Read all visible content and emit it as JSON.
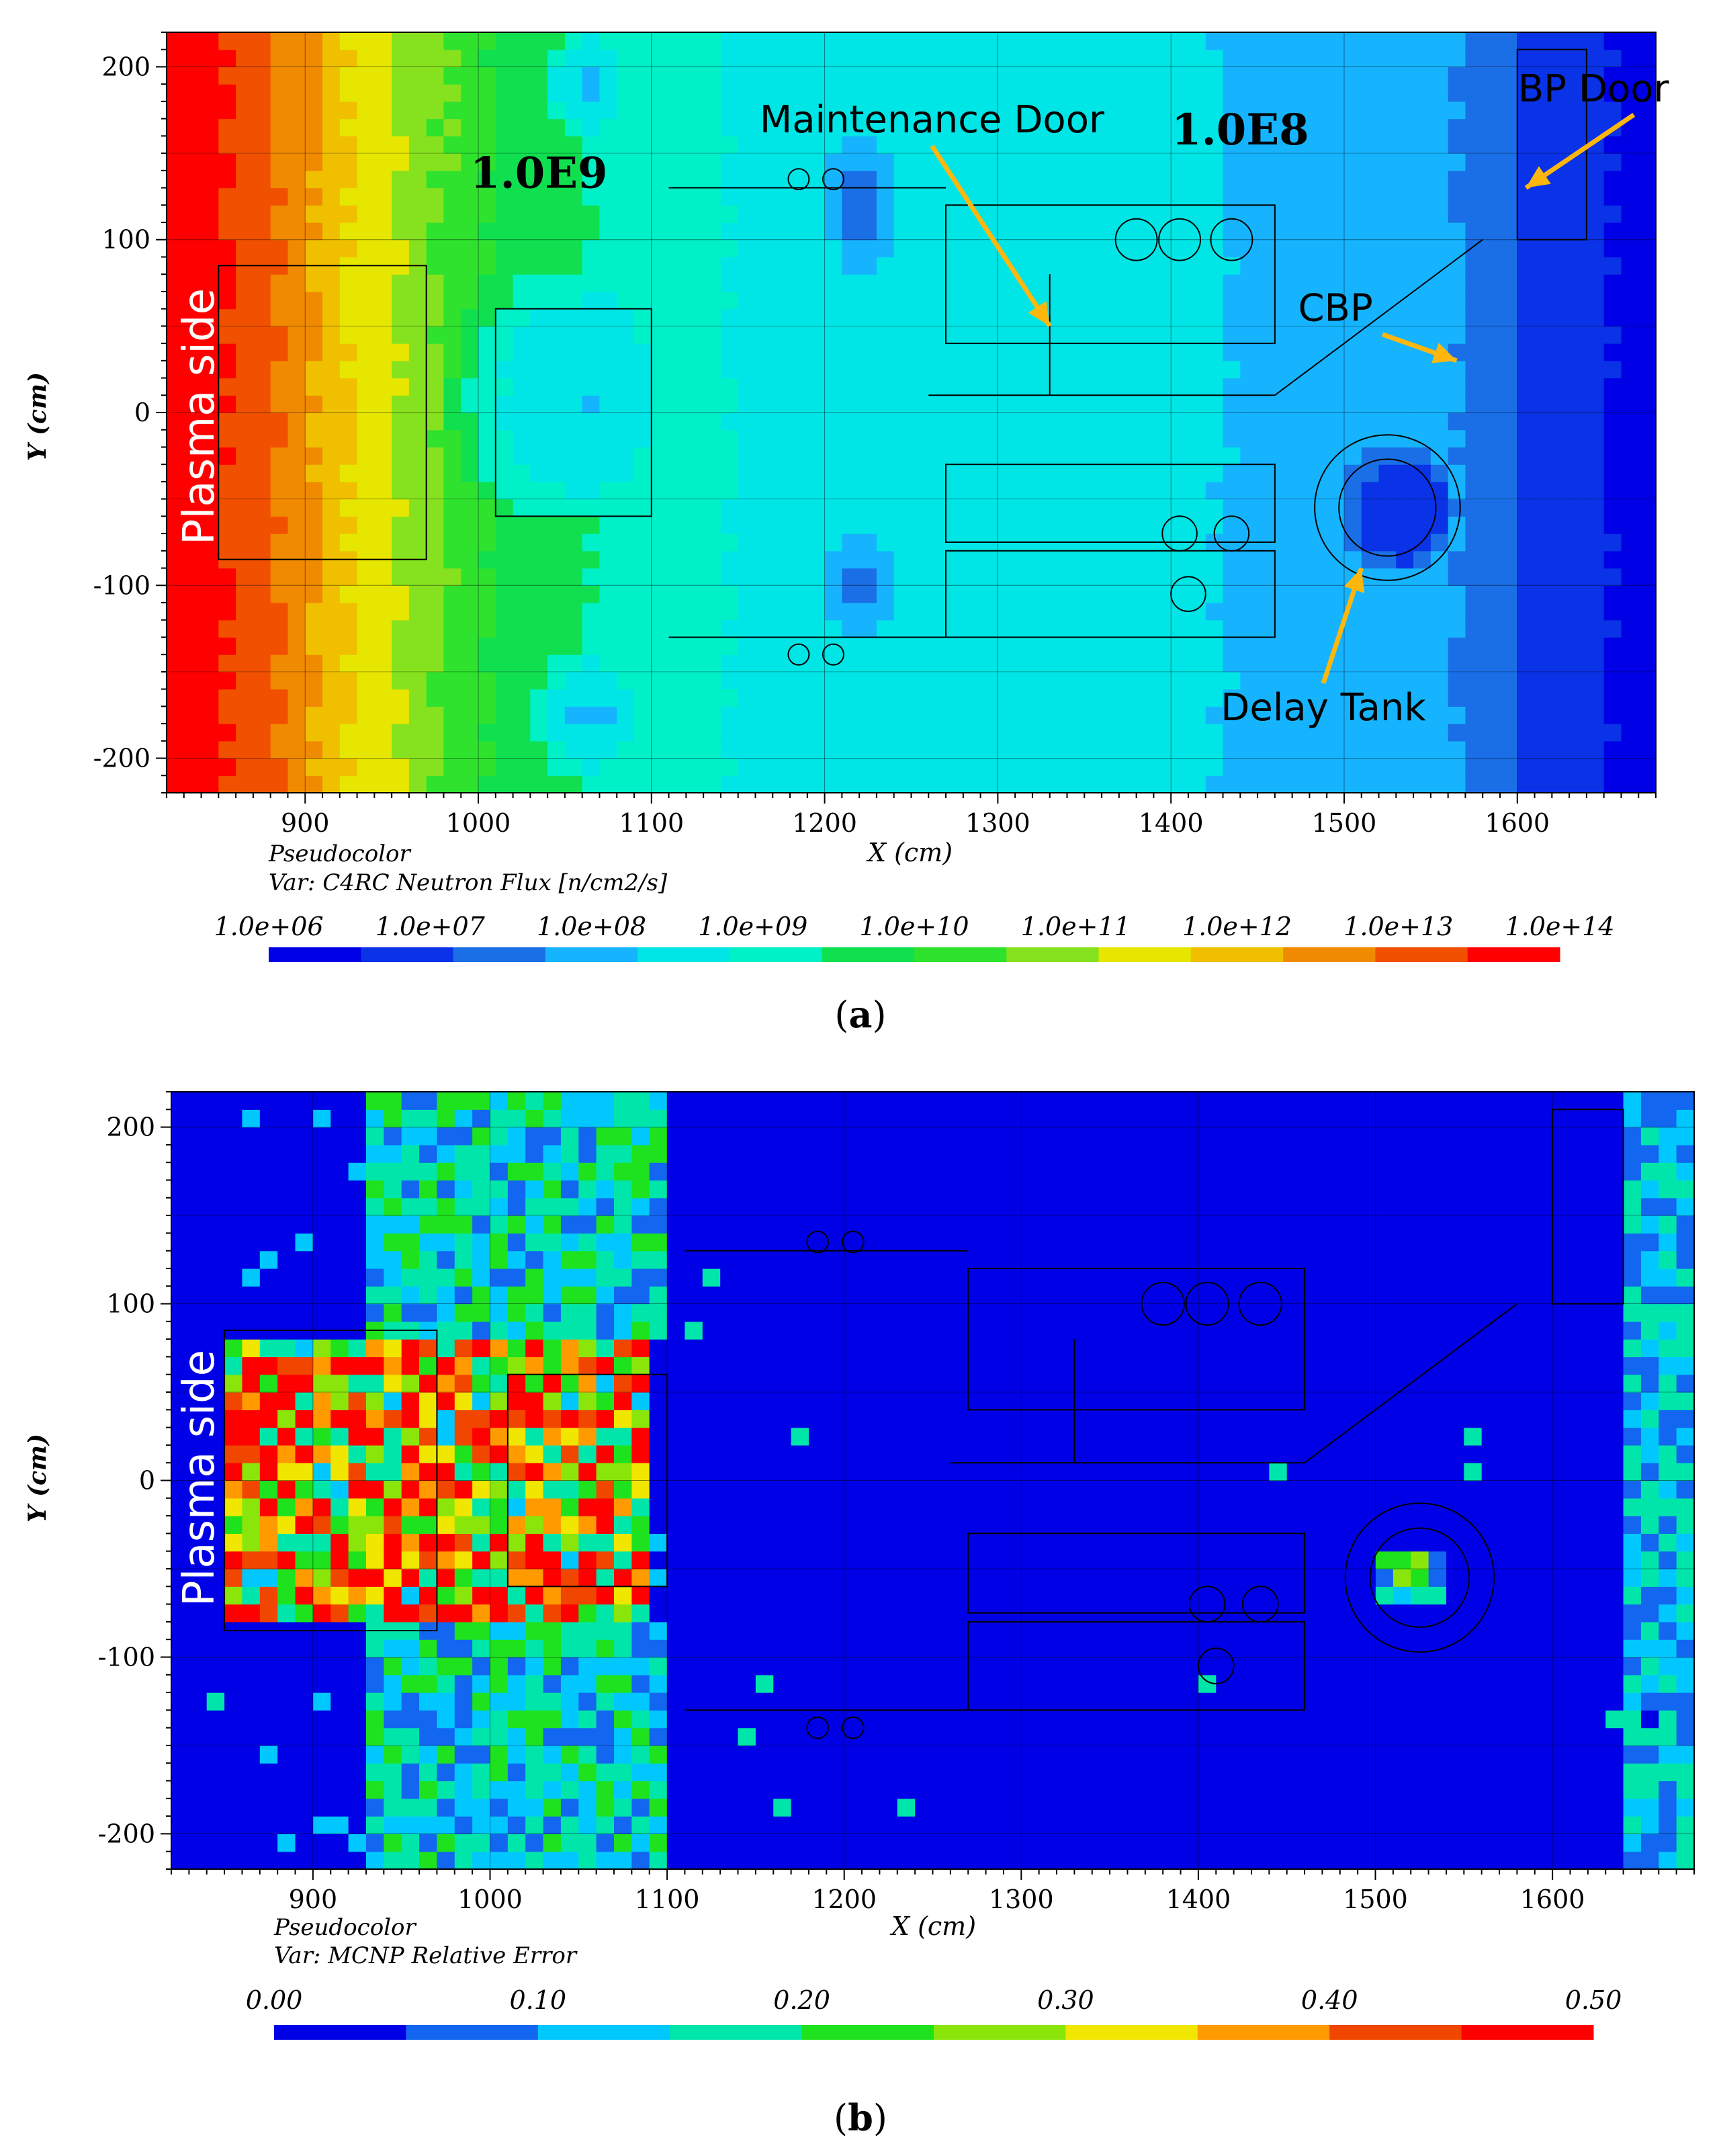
{
  "colors": {
    "flux_scale": [
      "#0000e6",
      "#0a32e6",
      "#1a6fe6",
      "#16b4ff",
      "#00e6e6",
      "#00f0c8",
      "#10e050",
      "#2ee22e",
      "#86e21e",
      "#e6e600",
      "#f0c000",
      "#f08a00",
      "#f05000",
      "#ff0000"
    ],
    "error_scale": [
      "#0000e6",
      "#1366f0",
      "#00c8ff",
      "#00e6aa",
      "#1ee21e",
      "#8ae60a",
      "#f0e600",
      "#ff9a00",
      "#f04600",
      "#ff0000"
    ],
    "annotation_arrow": "#ffb70e",
    "geometry_line": "#000000"
  },
  "chart_data": [
    {
      "id": "a",
      "type": "heatmap",
      "panel_label": "a",
      "xlabel": "X (cm)",
      "ylabel": "Y (cm)",
      "xlim": [
        820,
        1680
      ],
      "ylim": [
        -220,
        220
      ],
      "xticks": [
        900,
        1000,
        1100,
        1200,
        1300,
        1400,
        1500,
        1600
      ],
      "yticks": [
        200,
        100,
        0,
        -100,
        -200
      ],
      "plot_type_label": "Pseudocolor",
      "var_label": "Var: C4RC Neutron Flux [n/cm2/s]",
      "colorbar_labels": [
        "1.0e+06",
        "1.0e+07",
        "1.0e+08",
        "1.0e+09",
        "1.0e+10",
        "1.0e+11",
        "1.0e+12",
        "1.0e+13",
        "1.0e+14"
      ],
      "side_label": "Plasma side",
      "annotations": [
        {
          "text": "1.0E9",
          "x": 1035,
          "y": 130
        },
        {
          "text": "1.0E8",
          "x": 1440,
          "y": 155
        },
        {
          "text": "Maintenance Door",
          "x": 1262,
          "y": 162
        },
        {
          "text": "BP Door",
          "x": 1644,
          "y": 180
        },
        {
          "text": "CBP",
          "x": 1495,
          "y": 53
        },
        {
          "text": "Delay Tank",
          "x": 1488,
          "y": -178
        }
      ],
      "field_profile": {
        "x": [
          830,
          860,
          880,
          900,
          920,
          940,
          960,
          980,
          1000,
          1030,
          1060,
          1100,
          1200,
          1300,
          1400,
          1440,
          1500,
          1560,
          1600,
          1640,
          1680
        ],
        "log10_flux": [
          14.0,
          13.6,
          13.2,
          12.6,
          12.0,
          11.5,
          11.1,
          10.6,
          10.1,
          9.7,
          9.4,
          8.9,
          8.6,
          8.5,
          8.3,
          8.1,
          7.9,
          7.6,
          7.2,
          6.7,
          6.4
        ]
      }
    },
    {
      "id": "b",
      "type": "heatmap",
      "panel_label": "b",
      "xlabel": "X (cm)",
      "ylabel": "Y (cm)",
      "xlim": [
        820,
        1680
      ],
      "ylim": [
        -220,
        220
      ],
      "xticks": [
        900,
        1000,
        1100,
        1200,
        1300,
        1400,
        1500,
        1600
      ],
      "yticks": [
        200,
        100,
        0,
        -100,
        -200
      ],
      "plot_type_label": "Pseudocolor",
      "var_label": "Var: MCNP Relative Error",
      "colorbar_labels": [
        "0.00",
        "0.10",
        "0.20",
        "0.30",
        "0.40",
        "0.50"
      ],
      "side_label": "Plasma side",
      "error_regions": [
        {
          "x": [
            850,
            1090
          ],
          "y": [
            -80,
            80
          ],
          "level": 0.35
        },
        {
          "x": [
            930,
            1100
          ],
          "y": [
            -220,
            -80
          ],
          "level": 0.15
        },
        {
          "x": [
            930,
            1100
          ],
          "y": [
            80,
            220
          ],
          "level": 0.15
        },
        {
          "x": [
            1500,
            1540
          ],
          "y": [
            -70,
            -40
          ],
          "level": 0.17
        },
        {
          "x": [
            1640,
            1680
          ],
          "y": [
            -220,
            220
          ],
          "level": 0.12
        }
      ]
    }
  ]
}
